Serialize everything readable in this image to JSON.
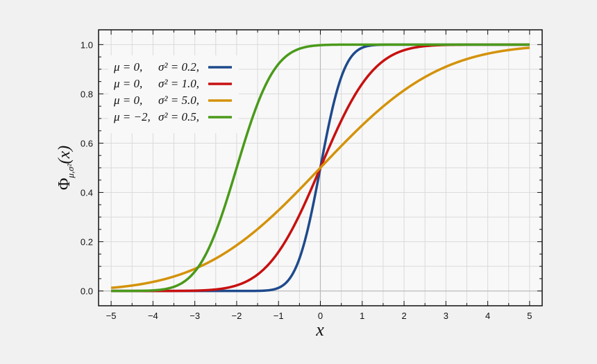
{
  "chart_data": {
    "type": "line",
    "title": "",
    "xlabel": "x",
    "ylabel": {
      "symbol": "Φ",
      "subscript": "μ,σ²",
      "argument": "(x)"
    },
    "xlim": [
      -5.3,
      5.3
    ],
    "ylim": [
      -0.06,
      1.06
    ],
    "x_ticks": [
      -5,
      -4,
      -3,
      -2,
      -1,
      0,
      1,
      2,
      3,
      4,
      5
    ],
    "x_tick_labels": [
      "−5",
      "−4",
      "−3",
      "−2",
      "−1",
      "0",
      "1",
      "2",
      "3",
      "4",
      "5"
    ],
    "y_ticks": [
      0,
      0.2,
      0.4,
      0.6,
      0.8,
      1.0
    ],
    "y_tick_labels": [
      "0.0",
      "0.2",
      "0.4",
      "0.6",
      "0.8",
      "1.0"
    ],
    "grid": true,
    "legend_position": "top-left",
    "series": [
      {
        "mu_label": "μ = 0,",
        "sigma2_label": "σ² = 0.2,",
        "color": "#1f4a8c",
        "x": [
          -5,
          -4,
          -3,
          -2,
          -1.5,
          -1,
          -0.75,
          -0.5,
          -0.25,
          0,
          0.25,
          0.5,
          0.75,
          1,
          1.5,
          2,
          3,
          4,
          5
        ],
        "y": [
          0,
          0,
          0,
          0,
          0.0004,
          0.0127,
          0.0468,
          0.1318,
          0.288,
          0.5,
          0.712,
          0.8682,
          0.9532,
          0.9873,
          0.9996,
          1,
          1,
          1,
          1
        ]
      },
      {
        "mu_label": "μ = 0,",
        "sigma2_label": "σ² = 1.0,",
        "color": "#c81010",
        "x": [
          -5,
          -4,
          -3,
          -2.5,
          -2,
          -1.5,
          -1,
          -0.5,
          0,
          0.5,
          1,
          1.5,
          2,
          2.5,
          3,
          4,
          5
        ],
        "y": [
          0,
          0.0,
          0.0013,
          0.0062,
          0.0228,
          0.0668,
          0.1587,
          0.3085,
          0.5,
          0.6915,
          0.8413,
          0.9332,
          0.9772,
          0.9938,
          0.9987,
          1,
          1
        ]
      },
      {
        "mu_label": "μ = 0,",
        "sigma2_label": "σ² = 5.0,",
        "color": "#d4920a",
        "x": [
          -5,
          -4,
          -3,
          -2,
          -1,
          0,
          1,
          2,
          3,
          4,
          5
        ],
        "y": [
          0.0127,
          0.0368,
          0.0899,
          0.1855,
          0.3264,
          0.5,
          0.6736,
          0.8145,
          0.9101,
          0.9632,
          0.9873
        ]
      },
      {
        "mu_label": "μ = −2,",
        "sigma2_label": "σ² = 0.5,",
        "color": "#4a9a1a",
        "x": [
          -5,
          -4,
          -3.5,
          -3,
          -2.5,
          -2,
          -1.5,
          -1,
          -0.5,
          0,
          1,
          2,
          3,
          4,
          5
        ],
        "y": [
          0,
          0.0023,
          0.0169,
          0.0786,
          0.2398,
          0.5,
          0.7602,
          0.9214,
          0.9831,
          0.9977,
          1,
          1,
          1,
          1,
          1
        ]
      }
    ]
  }
}
